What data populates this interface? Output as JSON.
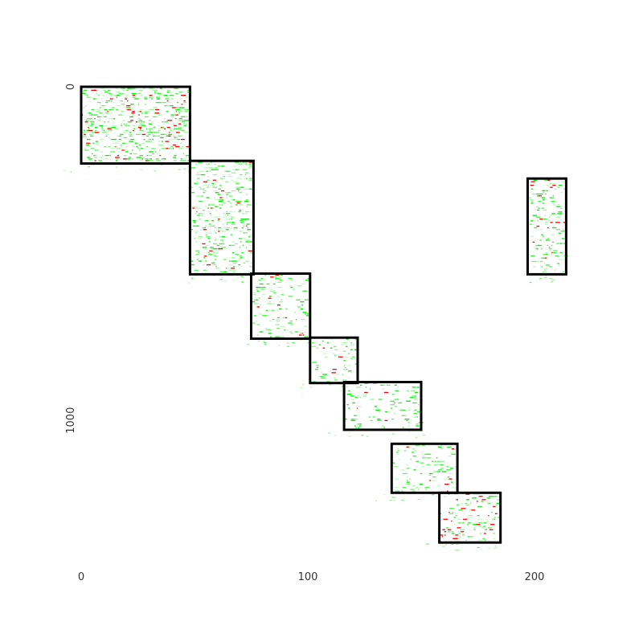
{
  "chart_data": {
    "type": "heatmap",
    "title": "",
    "xlabel": "",
    "ylabel": "",
    "x_axis": {
      "ticks": [
        0,
        100,
        200
      ],
      "tick_labels": [
        "0",
        "100",
        "200"
      ],
      "range": [
        0,
        227
      ]
    },
    "y_axis": {
      "ticks": [
        0,
        1000
      ],
      "tick_labels": [
        "0",
        "1000"
      ],
      "range": [
        0,
        1353
      ]
    },
    "grid": false,
    "legend": "none",
    "colors": {
      "low": "#00ee00",
      "mid": "#a0f0a0",
      "high": "#ff0000",
      "box": "#000000",
      "background": "#ffffff"
    },
    "blocks": [
      {
        "x": [
          0,
          48
        ],
        "y": [
          0,
          230
        ],
        "density": 0.55,
        "hot": 0.12
      },
      {
        "x": [
          48,
          76
        ],
        "y": [
          222,
          562
        ],
        "density": 0.45,
        "hot": 0.05
      },
      {
        "x": [
          75,
          101
        ],
        "y": [
          560,
          755
        ],
        "density": 0.32,
        "hot": 0.04
      },
      {
        "x": [
          101,
          122
        ],
        "y": [
          752,
          888
        ],
        "density": 0.3,
        "hot": 0.05
      },
      {
        "x": [
          116,
          150
        ],
        "y": [
          885,
          1028
        ],
        "density": 0.28,
        "hot": 0.03
      },
      {
        "x": [
          137,
          166
        ],
        "y": [
          1070,
          1217
        ],
        "density": 0.3,
        "hot": 0.05
      },
      {
        "x": [
          158,
          185
        ],
        "y": [
          1217,
          1366
        ],
        "density": 0.35,
        "hot": 0.2
      },
      {
        "x": [
          197,
          214
        ],
        "y": [
          275,
          562
        ],
        "density": 0.4,
        "hot": 0.08
      }
    ]
  }
}
